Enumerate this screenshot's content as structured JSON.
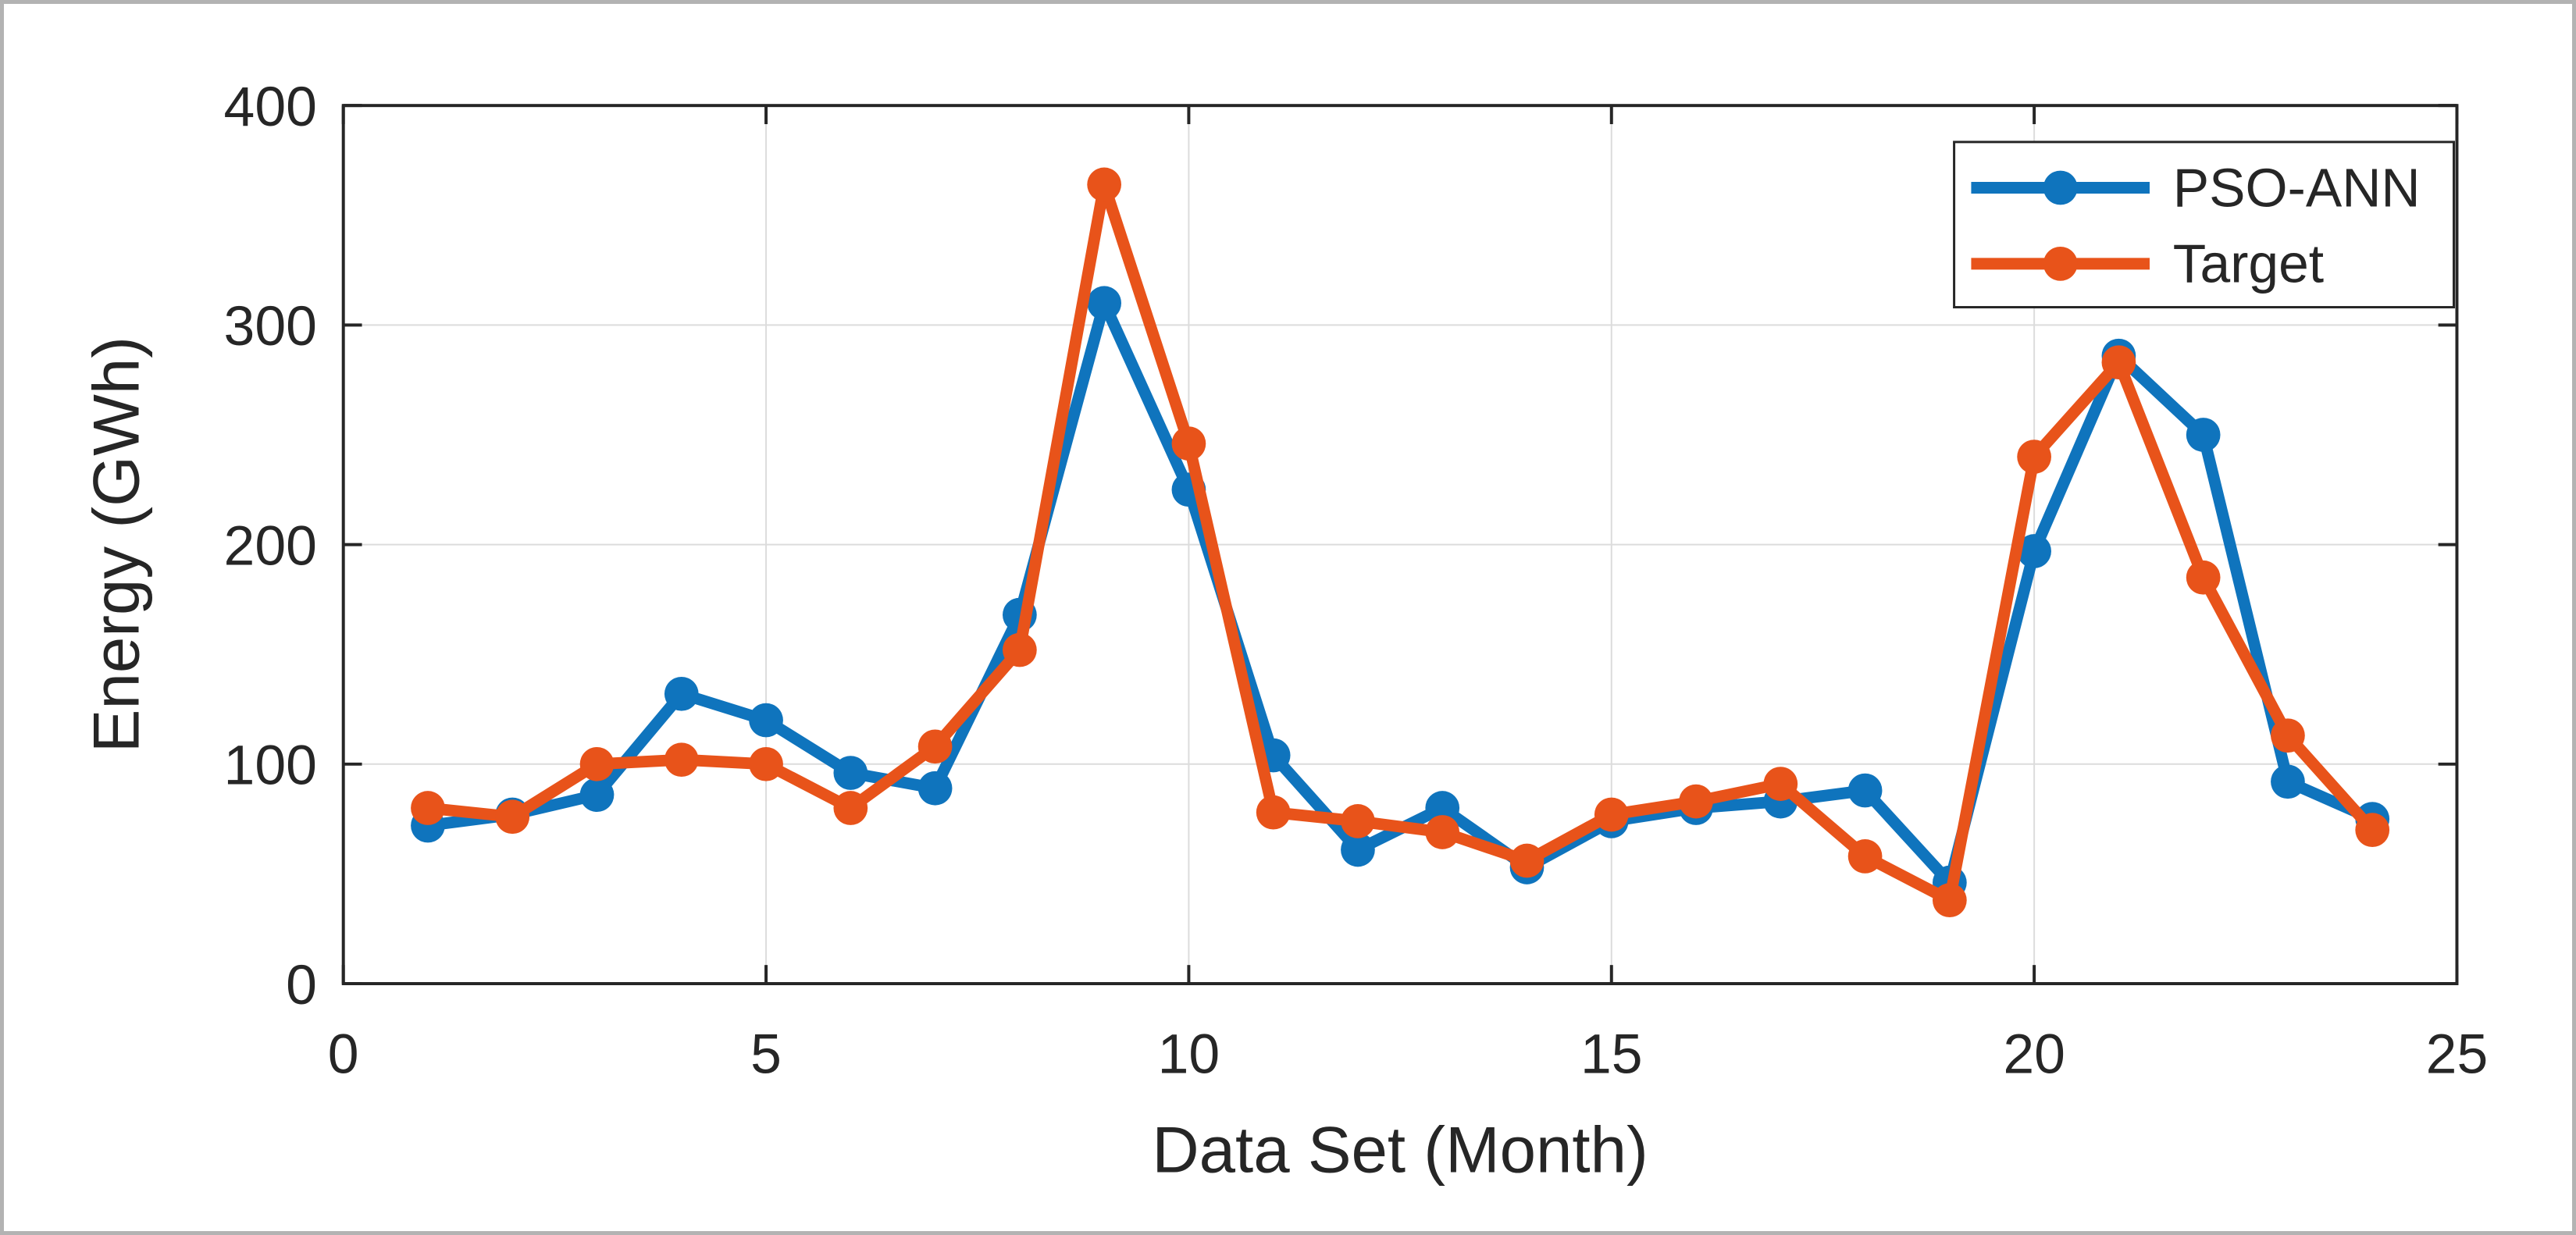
{
  "chart_data": {
    "type": "line",
    "title": "",
    "xlabel": "Data Set (Month)",
    "ylabel": "Energy (GWh)",
    "xlim": [
      0,
      25
    ],
    "ylim": [
      0,
      400
    ],
    "xticks": [
      0,
      5,
      10,
      15,
      20,
      25
    ],
    "yticks": [
      0,
      100,
      200,
      300,
      400
    ],
    "grid": true,
    "legend_position": "top-right",
    "x": [
      1,
      2,
      3,
      4,
      5,
      6,
      7,
      8,
      9,
      10,
      11,
      12,
      13,
      14,
      15,
      16,
      17,
      18,
      19,
      20,
      21,
      22,
      23,
      24
    ],
    "series": [
      {
        "name": "PSO-ANN",
        "color": "#0f74bd",
        "values": [
          72,
          77,
          86,
          132,
          120,
          96,
          89,
          168,
          310,
          225,
          104,
          61,
          80,
          53,
          74,
          80,
          83,
          88,
          46,
          197,
          286,
          250,
          92,
          75
        ]
      },
      {
        "name": "Target",
        "color": "#e8531a",
        "values": [
          80,
          76,
          100,
          102,
          100,
          80,
          108,
          152,
          364,
          246,
          78,
          74,
          69,
          56,
          77,
          83,
          91,
          58,
          38,
          240,
          283,
          185,
          113,
          70
        ]
      }
    ],
    "axis_color": "#262626",
    "grid_color": "#dcdcdc",
    "background": "#ffffff"
  }
}
